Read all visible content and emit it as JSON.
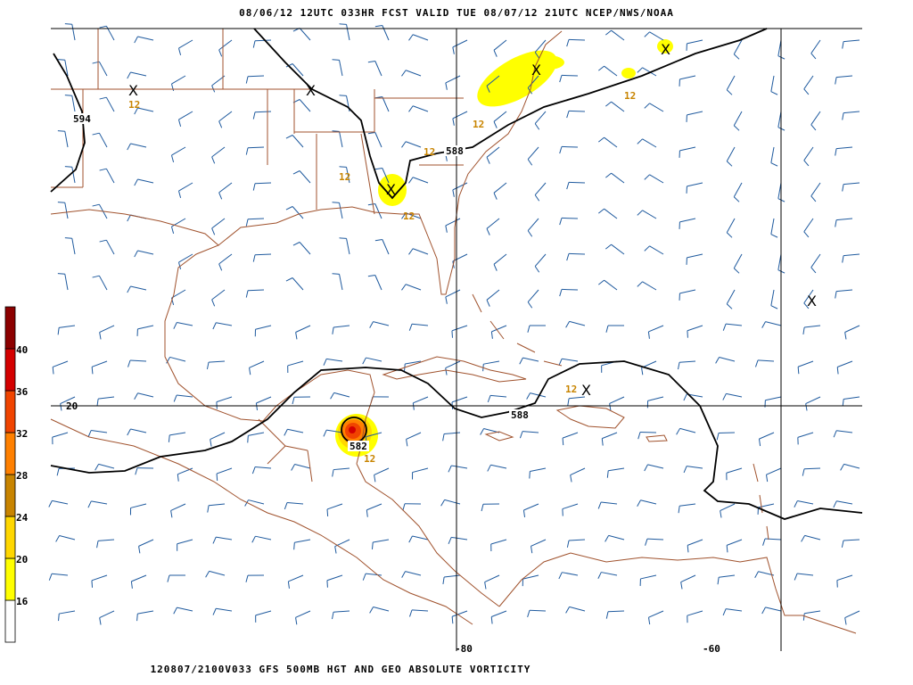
{
  "header": {
    "title": "08/06/12 12UTC   033HR   FCST VALID TUE 08/07/12 21UTC   NCEP/NWS/NOAA"
  },
  "footer": {
    "title": "120807/2100V033 GFS 500MB HGT AND GEO ABSOLUTE VORTICITY"
  },
  "colorbar": {
    "labels": [
      "16",
      "20",
      "24",
      "28",
      "32",
      "36",
      "40"
    ],
    "colors": [
      "#ffffff",
      "#ffff00",
      "#ffd700",
      "#c88400",
      "#ff8000",
      "#f04400",
      "#d40000",
      "#8c0000"
    ]
  },
  "axes": {
    "lon_labels": [
      "-80",
      "-60"
    ],
    "lat_labels": [
      "20"
    ]
  },
  "contours": {
    "labels": [
      "594",
      "588",
      "588",
      "582"
    ],
    "color": "#000000"
  },
  "vorticity_labels": [
    "12",
    "12",
    "12",
    "12",
    "12",
    "12",
    "12",
    "12"
  ],
  "vorticity_label_color": "#c88400",
  "max_markers": [
    "X",
    "X",
    "X",
    "X",
    "X",
    "X",
    "X"
  ],
  "colors": {
    "coastline": "#a0522d",
    "wind_barbs": "#1f5a9e",
    "grid": "#000000"
  }
}
